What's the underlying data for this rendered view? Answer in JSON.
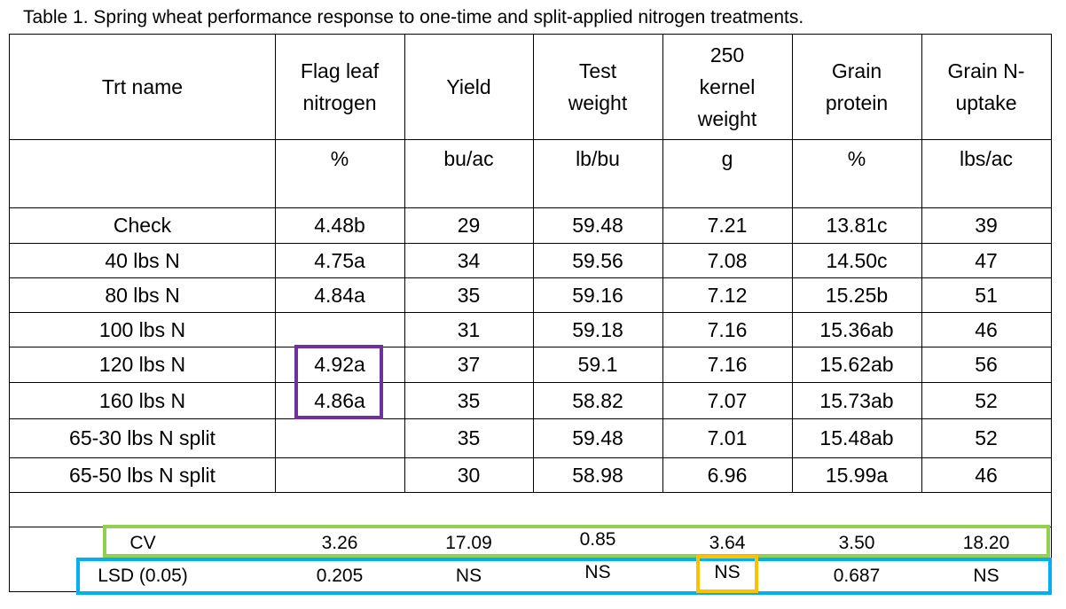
{
  "caption": "Table 1. Spring wheat performance response to one-time and split-applied nitrogen treatments.",
  "headers": [
    "Trt name",
    "Flag leaf nitrogen",
    "Yield",
    "Test weight",
    "250 kernel weight",
    "Grain protein",
    "Grain N-uptake"
  ],
  "header_lines": [
    [
      "Trt name"
    ],
    [
      "Flag leaf",
      "nitrogen"
    ],
    [
      "Yield"
    ],
    [
      "Test",
      "weight"
    ],
    [
      "250",
      "kernel",
      "weight"
    ],
    [
      "Grain",
      "protein"
    ],
    [
      "Grain N-",
      "uptake"
    ]
  ],
  "units": [
    "",
    "%",
    "bu/ac",
    "lb/bu",
    "g",
    "%",
    "lbs/ac"
  ],
  "rows": [
    [
      "Check",
      "4.48b",
      "29",
      "59.48",
      "7.21",
      "13.81c",
      "39"
    ],
    [
      "40 lbs N",
      "4.75a",
      "34",
      "59.56",
      "7.08",
      "14.50c",
      "47"
    ],
    [
      "80 lbs N",
      "4.84a",
      "35",
      "59.16",
      "7.12",
      "15.25b",
      "51"
    ],
    [
      "100 lbs N",
      "",
      "31",
      "59.18",
      "7.16",
      "15.36ab",
      "46"
    ],
    [
      "120 lbs N",
      "4.92a",
      "37",
      "59.1",
      "7.16",
      "15.62ab",
      "56"
    ],
    [
      "160 lbs N",
      "4.86a",
      "35",
      "58.82",
      "7.07",
      "15.73ab",
      "52"
    ],
    [
      "65-30 lbs N split",
      "",
      "35",
      "59.48",
      "7.01",
      "15.48ab",
      "52"
    ],
    [
      "65-50 lbs N split",
      "",
      "30",
      "58.98",
      "6.96",
      "15.99a",
      "46"
    ]
  ],
  "stats": [
    [
      "CV",
      "3.26",
      "17.09",
      "0.85",
      "3.64",
      "3.50",
      "18.20"
    ],
    [
      "LSD (0.05)",
      "0.205",
      "NS",
      "NS",
      "NS",
      "0.687",
      "NS"
    ]
  ],
  "highlight_colors": {
    "flag_leaf_box": "#7030a0",
    "cv_row_box": "#92d050",
    "lsd_row_box": "#00b0f0",
    "kernel_ns_box": "#ffc000"
  }
}
